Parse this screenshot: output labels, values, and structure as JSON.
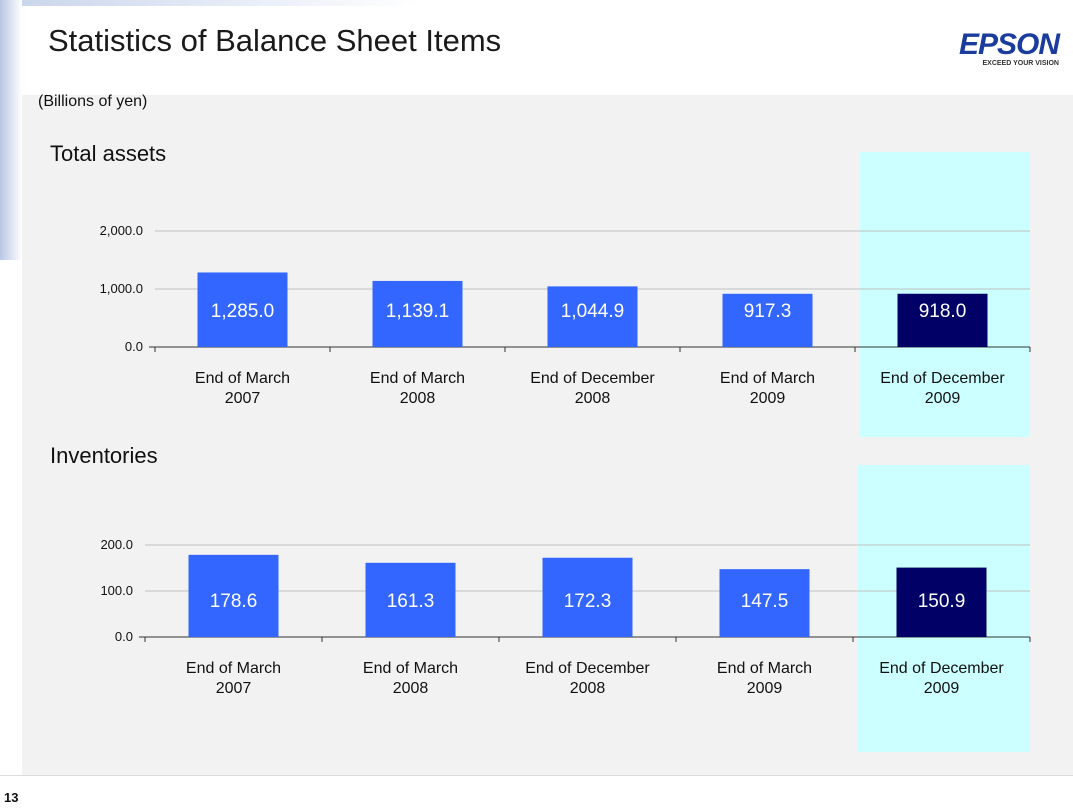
{
  "title": "Statistics of Balance Sheet Items",
  "unit": "(Billions of yen)",
  "page_number": "13",
  "logo": {
    "name": "EPSON",
    "tagline": "EXCEED YOUR VISION"
  },
  "chart_data": [
    {
      "type": "bar",
      "title": "Total assets",
      "categories": [
        "End of March\n2007",
        "End of March\n2008",
        "End of December\n2008",
        "End of March\n2009",
        "End of December\n2009"
      ],
      "values": [
        1285,
        1139.1,
        1044.9,
        917.3,
        918
      ],
      "value_labels": [
        "1,285.0",
        "1,139.1",
        "1,044.9",
        "917.3",
        "918.0"
      ],
      "colors": [
        "#3366ff",
        "#3366ff",
        "#3366ff",
        "#3366ff",
        "#000066"
      ],
      "ylim": [
        0,
        2000
      ],
      "yticks": [
        {
          "value": 0,
          "label": "0.0"
        },
        {
          "value": 1000,
          "label": "1,000.0"
        },
        {
          "value": 2000,
          "label": "2,000.0"
        }
      ],
      "grid": true
    },
    {
      "type": "bar",
      "title": "Inventories",
      "categories": [
        "End of March\n2007",
        "End of March\n2008",
        "End of December\n2008",
        "End of March\n2009",
        "End of December\n2009"
      ],
      "values": [
        178.6,
        161.3,
        172.3,
        147.5,
        150.9
      ],
      "colors": [
        "#3366ff",
        "#3366ff",
        "#3366ff",
        "#3366ff",
        "#000066"
      ],
      "ylim": [
        0,
        200
      ],
      "yticks": [
        {
          "value": 0,
          "label": "0.0"
        },
        {
          "value": 100,
          "label": "100.0"
        },
        {
          "value": 200,
          "label": "200.0"
        }
      ],
      "grid": true
    }
  ]
}
